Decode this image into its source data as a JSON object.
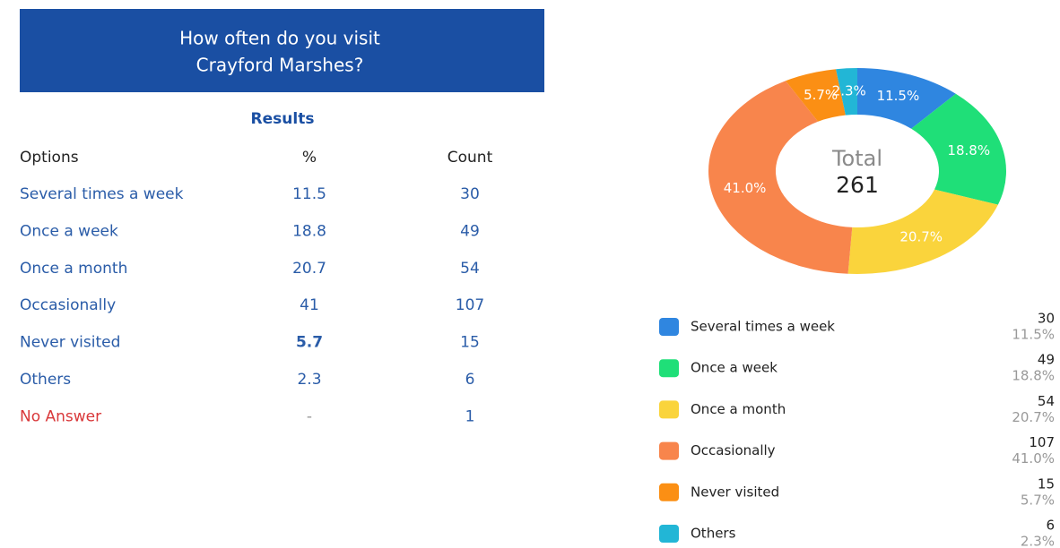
{
  "header": {
    "title_lines": [
      "How often do you visit",
      "Crayford Marshes?"
    ]
  },
  "results_title": "Results",
  "table": {
    "columns": [
      "Options",
      "%",
      "Count"
    ],
    "rows": [
      [
        "Several times a week",
        11.5,
        30
      ],
      [
        "Once a week",
        18.8,
        49
      ],
      [
        "Once a month",
        20.7,
        54
      ],
      [
        "Occasionally",
        41,
        107
      ],
      [
        "Never visited",
        5.7,
        15
      ],
      [
        "Others",
        2.3,
        6
      ],
      [
        "No Answer",
        "-",
        1
      ]
    ]
  },
  "chart_data": {
    "type": "pie",
    "donut": true,
    "center_label": "Total",
    "center_value": 261,
    "categories": [
      "Several times a week",
      "Once a week",
      "Once a month",
      "Occasionally",
      "Never visited",
      "Others"
    ],
    "values": [
      11.5,
      18.8,
      20.7,
      41.0,
      5.7,
      2.3
    ],
    "value_labels": [
      "11.5%",
      "18.8%",
      "20.7%",
      "41.0%",
      "5.7%",
      "2.3%"
    ],
    "counts": [
      30,
      49,
      54,
      107,
      15,
      6
    ],
    "colors": [
      "#2f86e0",
      "#1fdf78",
      "#fad43c",
      "#f8854c",
      "#fb8f14",
      "#22b6d6"
    ]
  }
}
